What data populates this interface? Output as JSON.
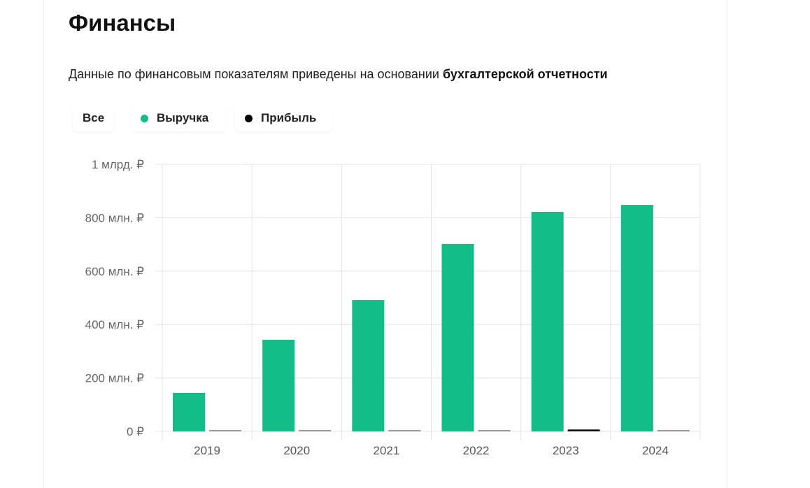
{
  "title": "Финансы",
  "subtitle_text": "Данные по финансовым показателям приведены на основании ",
  "subtitle_link": "бухгалтерской отчетности",
  "legend": {
    "all": "Все",
    "revenue": "Выручка",
    "profit": "Прибыль"
  },
  "colors": {
    "revenue": "#12bd88",
    "profit": "#111111",
    "profit_small": "#999999",
    "grid": "#e3e3e3"
  },
  "chart_data": {
    "type": "bar",
    "categories": [
      "2019",
      "2020",
      "2021",
      "2022",
      "2023",
      "2024"
    ],
    "series": [
      {
        "name": "Выручка",
        "values": [
          144,
          343,
          492,
          702,
          822,
          848
        ]
      },
      {
        "name": "Прибыль",
        "values": [
          2,
          2,
          2,
          2,
          7,
          2
        ]
      }
    ],
    "yticks": [
      {
        "v": 0,
        "label": "0 ₽"
      },
      {
        "v": 200,
        "label": "200 млн. ₽"
      },
      {
        "v": 400,
        "label": "400 млн. ₽"
      },
      {
        "v": 600,
        "label": "600 млн. ₽"
      },
      {
        "v": 800,
        "label": "800 млн. ₽"
      },
      {
        "v": 1000,
        "label": "1 млрд. ₽"
      }
    ],
    "ylim": [
      0,
      1000
    ],
    "yunit": "млн. ₽",
    "grid": true
  }
}
